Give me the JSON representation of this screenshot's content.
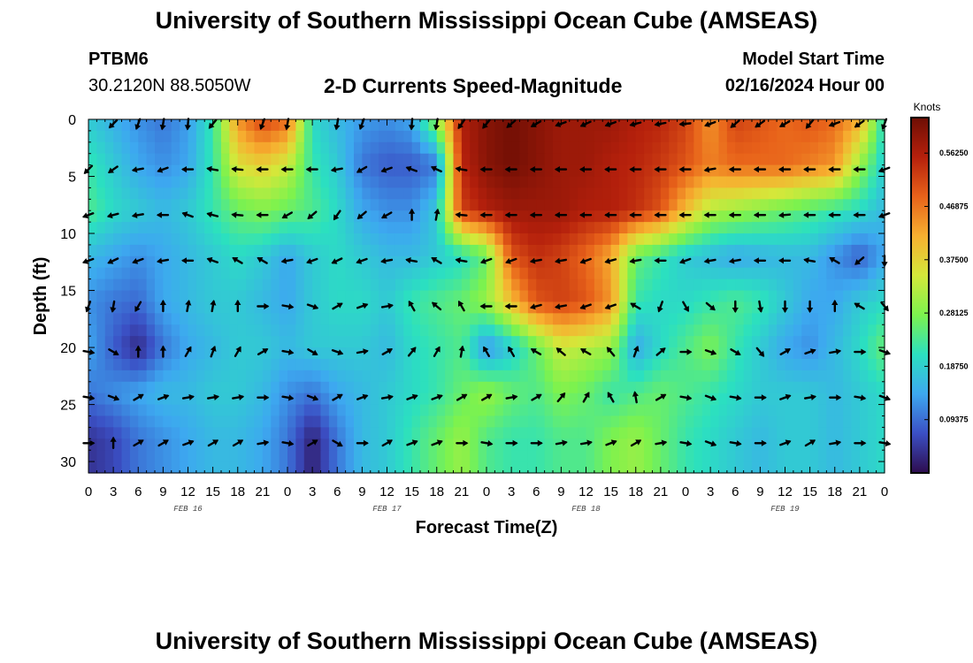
{
  "header": {
    "title": "University of Southern Mississippi Ocean Cube (AMSEAS)",
    "station_id": "PTBM6",
    "coordinates": "30.2120N  88.5050W",
    "subtitle": "2-D Currents Speed-Magnitude",
    "model_start_label": "Model Start Time",
    "model_start_value": "02/16/2024 Hour 00"
  },
  "footer": {
    "title": "University of Southern Mississippi Ocean Cube (AMSEAS)"
  },
  "colors": {
    "ramp": [
      "#2d0c4e",
      "#3b4fc4",
      "#3da8f0",
      "#2be0c0",
      "#7cf24e",
      "#d4e83a",
      "#f7b030",
      "#e8621a",
      "#b5200c",
      "#6e0e04"
    ],
    "arrow": "#000000",
    "axis": "#000000"
  },
  "chart_data": {
    "type": "heatmap",
    "title": "2-D Currents Speed-Magnitude",
    "xlabel": "Forecast Time(Z)",
    "ylabel": "Depth (ft)",
    "xlim": [
      0,
      96
    ],
    "ylim": [
      0,
      31
    ],
    "x_tick_labels": [
      "0",
      "3",
      "6",
      "9",
      "12",
      "15",
      "18",
      "21",
      "0",
      "3",
      "6",
      "9",
      "12",
      "15",
      "18",
      "21",
      "0",
      "3",
      "6",
      "9",
      "12",
      "15",
      "18",
      "21",
      "0",
      "3",
      "6",
      "9",
      "12",
      "15",
      "18",
      "21",
      "0"
    ],
    "date_labels": [
      {
        "hour": 12,
        "label": "FEB 16"
      },
      {
        "hour": 36,
        "label": "FEB 17"
      },
      {
        "hour": 60,
        "label": "FEB 18"
      },
      {
        "hour": 84,
        "label": "FEB 19"
      }
    ],
    "y_ticks": [
      0,
      5,
      10,
      15,
      20,
      25,
      30
    ],
    "colorbar": {
      "label": "Knots",
      "min": 0,
      "max": 0.625,
      "tick_values": [
        0.09375,
        0.1875,
        0.28125,
        0.375,
        0.46875,
        0.5625
      ],
      "tick_labels": [
        "0.09375",
        "0.18750",
        "0.28125",
        "0.37500",
        "0.46875",
        "0.56250"
      ]
    },
    "hours": [
      0,
      3,
      6,
      9,
      12,
      15,
      18,
      21,
      24,
      27,
      30,
      33,
      36,
      39,
      42,
      45,
      48,
      51,
      54,
      57,
      60,
      63,
      66,
      69,
      72,
      75,
      78,
      81,
      84,
      87,
      90,
      93,
      96
    ],
    "depths_ft": [
      0,
      4,
      8,
      12,
      16,
      20,
      24,
      28
    ],
    "speed_knots": [
      [
        0.18,
        0.15,
        0.12,
        0.1,
        0.13,
        0.22,
        0.44,
        0.52,
        0.48,
        0.2,
        0.16,
        0.13,
        0.12,
        0.14,
        0.3,
        0.56,
        0.6,
        0.62,
        0.6,
        0.58,
        0.58,
        0.58,
        0.56,
        0.55,
        0.52,
        0.44,
        0.52,
        0.5,
        0.48,
        0.5,
        0.48,
        0.42,
        0.2
      ],
      [
        0.22,
        0.18,
        0.14,
        0.12,
        0.14,
        0.22,
        0.36,
        0.38,
        0.34,
        0.22,
        0.18,
        0.1,
        0.08,
        0.08,
        0.1,
        0.55,
        0.6,
        0.62,
        0.6,
        0.58,
        0.58,
        0.56,
        0.55,
        0.53,
        0.5,
        0.46,
        0.48,
        0.48,
        0.48,
        0.46,
        0.44,
        0.3,
        0.18
      ],
      [
        0.24,
        0.2,
        0.18,
        0.16,
        0.18,
        0.22,
        0.26,
        0.28,
        0.26,
        0.24,
        0.2,
        0.14,
        0.12,
        0.12,
        0.18,
        0.52,
        0.56,
        0.58,
        0.58,
        0.58,
        0.56,
        0.56,
        0.54,
        0.5,
        0.4,
        0.32,
        0.3,
        0.28,
        0.26,
        0.24,
        0.22,
        0.2,
        0.16
      ],
      [
        0.16,
        0.14,
        0.12,
        0.14,
        0.16,
        0.18,
        0.2,
        0.18,
        0.14,
        0.18,
        0.2,
        0.18,
        0.16,
        0.16,
        0.18,
        0.2,
        0.26,
        0.5,
        0.54,
        0.52,
        0.48,
        0.42,
        0.26,
        0.22,
        0.18,
        0.16,
        0.14,
        0.15,
        0.16,
        0.16,
        0.12,
        0.08,
        0.14
      ],
      [
        0.12,
        0.1,
        0.09,
        0.14,
        0.16,
        0.18,
        0.18,
        0.16,
        0.14,
        0.18,
        0.2,
        0.2,
        0.18,
        0.22,
        0.24,
        0.26,
        0.3,
        0.4,
        0.5,
        0.52,
        0.5,
        0.44,
        0.22,
        0.2,
        0.2,
        0.22,
        0.24,
        0.22,
        0.18,
        0.14,
        0.14,
        0.18,
        0.2
      ],
      [
        0.14,
        0.08,
        0.03,
        0.1,
        0.14,
        0.16,
        0.18,
        0.18,
        0.16,
        0.18,
        0.18,
        0.18,
        0.16,
        0.2,
        0.22,
        0.24,
        0.12,
        0.18,
        0.26,
        0.34,
        0.32,
        0.3,
        0.14,
        0.2,
        0.24,
        0.28,
        0.22,
        0.18,
        0.14,
        0.12,
        0.16,
        0.2,
        0.26
      ],
      [
        0.1,
        0.12,
        0.14,
        0.16,
        0.16,
        0.18,
        0.18,
        0.16,
        0.12,
        0.1,
        0.14,
        0.16,
        0.18,
        0.2,
        0.22,
        0.26,
        0.3,
        0.26,
        0.24,
        0.28,
        0.26,
        0.22,
        0.24,
        0.26,
        0.24,
        0.22,
        0.2,
        0.18,
        0.18,
        0.18,
        0.16,
        0.18,
        0.2
      ],
      [
        0.04,
        0.06,
        0.1,
        0.12,
        0.14,
        0.16,
        0.16,
        0.14,
        0.1,
        0.02,
        0.1,
        0.16,
        0.18,
        0.22,
        0.26,
        0.3,
        0.24,
        0.22,
        0.22,
        0.24,
        0.24,
        0.28,
        0.3,
        0.26,
        0.22,
        0.2,
        0.18,
        0.16,
        0.18,
        0.18,
        0.16,
        0.18,
        0.2
      ]
    ],
    "arrows": [
      {
        "depth": 0,
        "hours": [
          3,
          6,
          9,
          12,
          15,
          21,
          24,
          30,
          33,
          39,
          42,
          45,
          48,
          51,
          54,
          57,
          60,
          63,
          66,
          69,
          72,
          75,
          78,
          81,
          84,
          87,
          90,
          93,
          96
        ],
        "dir_deg": [
          225,
          200,
          190,
          185,
          220,
          200,
          190,
          190,
          200,
          185,
          190,
          215,
          220,
          230,
          240,
          250,
          245,
          250,
          255,
          260,
          265,
          250,
          230,
          235,
          240,
          220,
          250,
          235,
          200
        ]
      },
      {
        "depth": 4,
        "hours": [
          0,
          3,
          6,
          9,
          12,
          15,
          18,
          21,
          24,
          27,
          30,
          33,
          36,
          39,
          42,
          45,
          48,
          51,
          54,
          57,
          60,
          63,
          66,
          69,
          72,
          75,
          78,
          81,
          84,
          87,
          90,
          93,
          96
        ],
        "dir_deg": [
          225,
          235,
          260,
          250,
          270,
          280,
          275,
          270,
          270,
          270,
          260,
          240,
          250,
          290,
          295,
          280,
          270,
          270,
          270,
          270,
          270,
          270,
          270,
          270,
          270,
          260,
          270,
          270,
          270,
          270,
          270,
          270,
          250
        ]
      },
      {
        "depth": 8,
        "hours": [
          0,
          3,
          6,
          9,
          12,
          15,
          18,
          21,
          24,
          27,
          30,
          33,
          36,
          39,
          42,
          45,
          48,
          51,
          54,
          57,
          60,
          63,
          66,
          69,
          72,
          75,
          78,
          81,
          84,
          87,
          90,
          93,
          96
        ],
        "dir_deg": [
          250,
          255,
          260,
          270,
          290,
          285,
          275,
          270,
          240,
          230,
          215,
          230,
          240,
          0,
          10,
          275,
          270,
          270,
          270,
          270,
          270,
          270,
          270,
          270,
          270,
          270,
          270,
          270,
          265,
          270,
          270,
          270,
          250
        ]
      },
      {
        "depth": 12,
        "hours": [
          0,
          3,
          6,
          9,
          12,
          15,
          18,
          21,
          24,
          27,
          30,
          33,
          36,
          39,
          42,
          45,
          48,
          51,
          54,
          57,
          60,
          63,
          66,
          69,
          72,
          75,
          78,
          81,
          84,
          87,
          90,
          93,
          96
        ],
        "dir_deg": [
          250,
          245,
          250,
          260,
          270,
          290,
          300,
          300,
          260,
          250,
          245,
          250,
          260,
          280,
          300,
          280,
          250,
          250,
          260,
          260,
          250,
          255,
          260,
          270,
          250,
          260,
          260,
          270,
          270,
          280,
          300,
          230,
          180
        ]
      },
      {
        "depth": 16,
        "hours": [
          0,
          3,
          6,
          9,
          12,
          15,
          18,
          21,
          24,
          27,
          30,
          33,
          36,
          39,
          42,
          45,
          48,
          51,
          54,
          57,
          60,
          63,
          66,
          69,
          72,
          75,
          78,
          81,
          84,
          87,
          90,
          93,
          96
        ],
        "dir_deg": [
          200,
          190,
          210,
          0,
          10,
          10,
          0,
          90,
          100,
          110,
          60,
          70,
          80,
          330,
          310,
          330,
          270,
          270,
          255,
          260,
          250,
          250,
          300,
          200,
          150,
          130,
          180,
          170,
          180,
          180,
          0,
          300,
          140
        ]
      },
      {
        "depth": 20,
        "hours": [
          0,
          3,
          6,
          9,
          12,
          15,
          18,
          21,
          24,
          27,
          30,
          33,
          36,
          39,
          42,
          45,
          48,
          51,
          54,
          57,
          60,
          63,
          66,
          69,
          72,
          75,
          78,
          81,
          84,
          87,
          90,
          93,
          96
        ],
        "dir_deg": [
          100,
          120,
          0,
          0,
          30,
          20,
          30,
          60,
          100,
          120,
          110,
          80,
          60,
          40,
          30,
          10,
          330,
          330,
          300,
          310,
          300,
          320,
          20,
          50,
          90,
          110,
          120,
          140,
          60,
          70,
          80,
          90,
          110
        ]
      },
      {
        "depth": 24,
        "hours": [
          0,
          3,
          6,
          9,
          12,
          15,
          18,
          21,
          24,
          27,
          30,
          33,
          36,
          39,
          42,
          45,
          48,
          51,
          54,
          57,
          60,
          63,
          66,
          69,
          72,
          75,
          78,
          81,
          84,
          87,
          90,
          93,
          96
        ],
        "dir_deg": [
          100,
          110,
          60,
          70,
          80,
          80,
          80,
          90,
          100,
          110,
          60,
          70,
          80,
          70,
          70,
          60,
          60,
          80,
          60,
          40,
          30,
          330,
          350,
          60,
          100,
          110,
          100,
          90,
          70,
          80,
          90,
          100,
          110
        ]
      },
      {
        "depth": 28,
        "hours": [
          0,
          3,
          6,
          9,
          12,
          15,
          18,
          21,
          24,
          27,
          30,
          33,
          36,
          39,
          42,
          45,
          48,
          51,
          54,
          57,
          60,
          63,
          66,
          69,
          72,
          75,
          78,
          81,
          84,
          87,
          90,
          93,
          96
        ],
        "dir_deg": [
          90,
          0,
          60,
          60,
          70,
          60,
          60,
          80,
          100,
          60,
          120,
          90,
          60,
          70,
          70,
          90,
          100,
          90,
          90,
          80,
          80,
          70,
          60,
          80,
          100,
          110,
          100,
          90,
          70,
          60,
          80,
          90,
          100
        ]
      }
    ]
  }
}
